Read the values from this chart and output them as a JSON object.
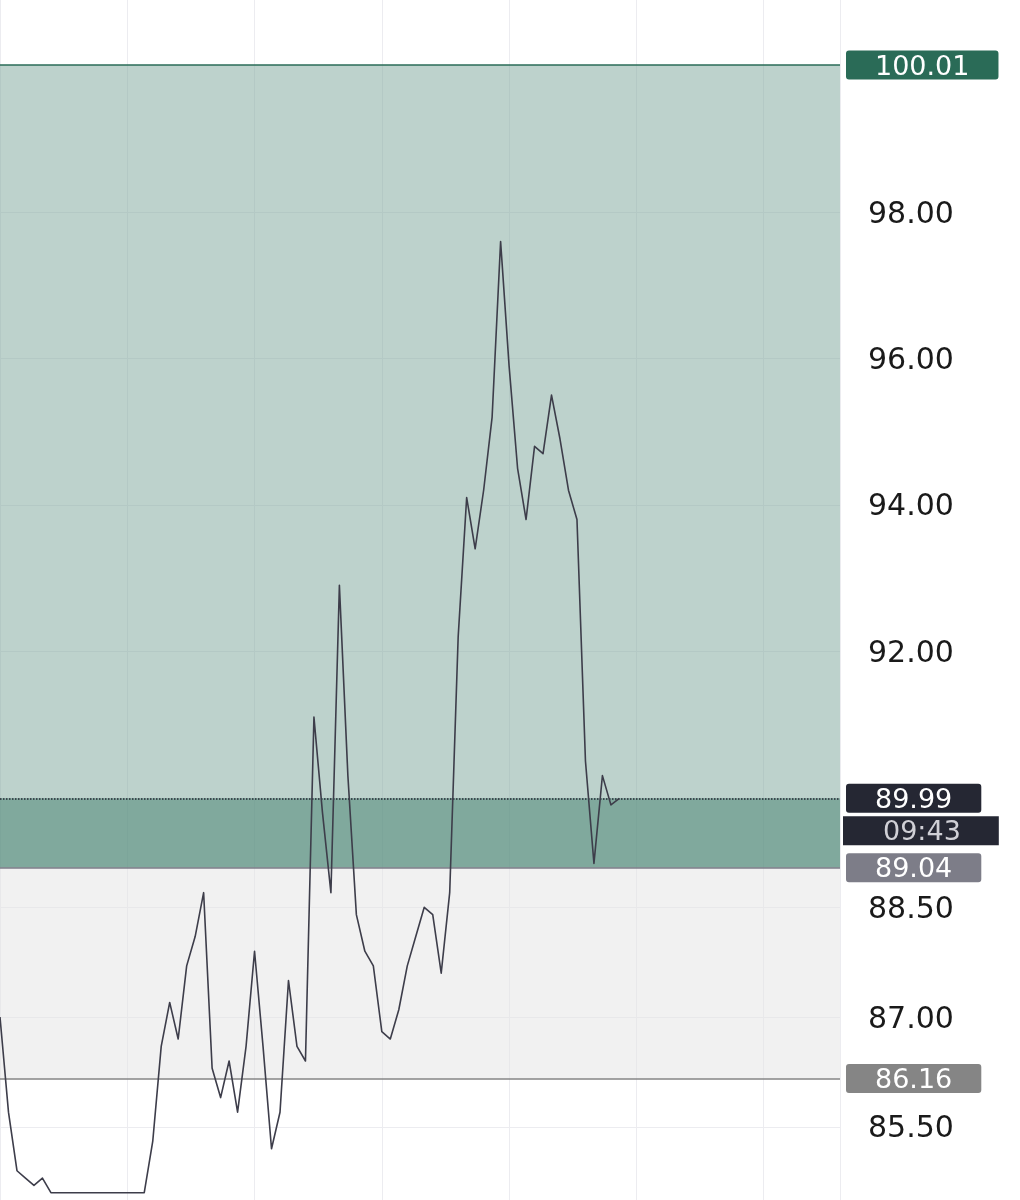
{
  "chart_data": {
    "type": "line",
    "categories": [
      null,
      null,
      null,
      null,
      null,
      null,
      null,
      null,
      null,
      null,
      null,
      null,
      null,
      null,
      null,
      null,
      null,
      null,
      null,
      null,
      null,
      null,
      null,
      null,
      null,
      null,
      null,
      null,
      null,
      null,
      null,
      null,
      null,
      null,
      null,
      null,
      null,
      null,
      null,
      null,
      null,
      null,
      null,
      null,
      null,
      null,
      null,
      null,
      null,
      null,
      null,
      null,
      null,
      null,
      null,
      null,
      null,
      null,
      null,
      null,
      null,
      null,
      null,
      null,
      null,
      null,
      null,
      null,
      null,
      null,
      null,
      null,
      null,
      null,
      null,
      null,
      null,
      null,
      null,
      null,
      null,
      null,
      null,
      null,
      null,
      null,
      null,
      null,
      null,
      null,
      null,
      null,
      null,
      null,
      null,
      null,
      null,
      null,
      null,
      null
    ],
    "series": [
      {
        "color": "#3d3d4a",
        "values": [
          87.0,
          85.7,
          84.9,
          84.8,
          84.7,
          84.8,
          84.6,
          84.6,
          84.6,
          84.6,
          84.6,
          84.6,
          84.6,
          84.6,
          84.6,
          84.6,
          84.6,
          84.6,
          85.3,
          86.6,
          87.2,
          86.7,
          87.7,
          88.1,
          88.7,
          86.3,
          85.9,
          86.4,
          85.7,
          86.6,
          87.9,
          86.6,
          85.2,
          85.7,
          87.5,
          86.6,
          86.4,
          91.1,
          89.8,
          88.7,
          92.9,
          90.3,
          88.4,
          87.9,
          87.7,
          86.8,
          86.7,
          87.1,
          87.7,
          88.1,
          88.5,
          88.4,
          87.6,
          88.7,
          92.2,
          94.1,
          93.4,
          94.2,
          95.2,
          97.6,
          95.9,
          94.5,
          93.8,
          94.8,
          94.7,
          95.5,
          94.9,
          94.2,
          93.8,
          90.5,
          89.1,
          90.3,
          89.9,
          89.99,
          null,
          null,
          null,
          null,
          null,
          null,
          null,
          null,
          null,
          null,
          null,
          null,
          null,
          null,
          null,
          null,
          null,
          null,
          null,
          null,
          null,
          null,
          null,
          null,
          null,
          null
        ]
      }
    ],
    "ylim": [
      84.5,
      100.9
    ],
    "yticks": [
      {
        "value": 85.5,
        "label": "85.50"
      },
      {
        "value": 87,
        "label": "87.00"
      },
      {
        "value": 88.5,
        "label": "88.50"
      },
      {
        "value": 92,
        "label": "92.00"
      },
      {
        "value": 94,
        "label": "94.00"
      },
      {
        "value": 96,
        "label": "96.00"
      },
      {
        "value": 98,
        "label": "98.00"
      }
    ],
    "tick_labels": "y",
    "grid": true,
    "ref_lines": [
      {
        "axis": "y",
        "value": 100.01,
        "label": "100.01",
        "color": "#2a6b57",
        "line_style": "solid"
      },
      {
        "axis": "y",
        "value": 89.99,
        "label": "89.99",
        "color": "#252733",
        "line_style": "dotted"
      },
      {
        "axis": "y",
        "value": 89.04,
        "label": "89.04",
        "color": "#7d7d88",
        "line_style": "solid"
      },
      {
        "axis": "y",
        "value": 86.16,
        "label": "86.16",
        "color": "#858585",
        "line_style": "solid"
      }
    ],
    "bands": [
      {
        "axis": "y",
        "from": 89.04,
        "to": 100.01,
        "color": "#86ada3"
      },
      {
        "axis": "y",
        "from": 86.16,
        "to": 89.04,
        "color": "#e6e6e6"
      },
      {
        "axis": "y",
        "from": 89.04,
        "to": 89.99,
        "color": "#4f8677"
      }
    ],
    "annotations": [
      "09:43"
    ]
  }
}
